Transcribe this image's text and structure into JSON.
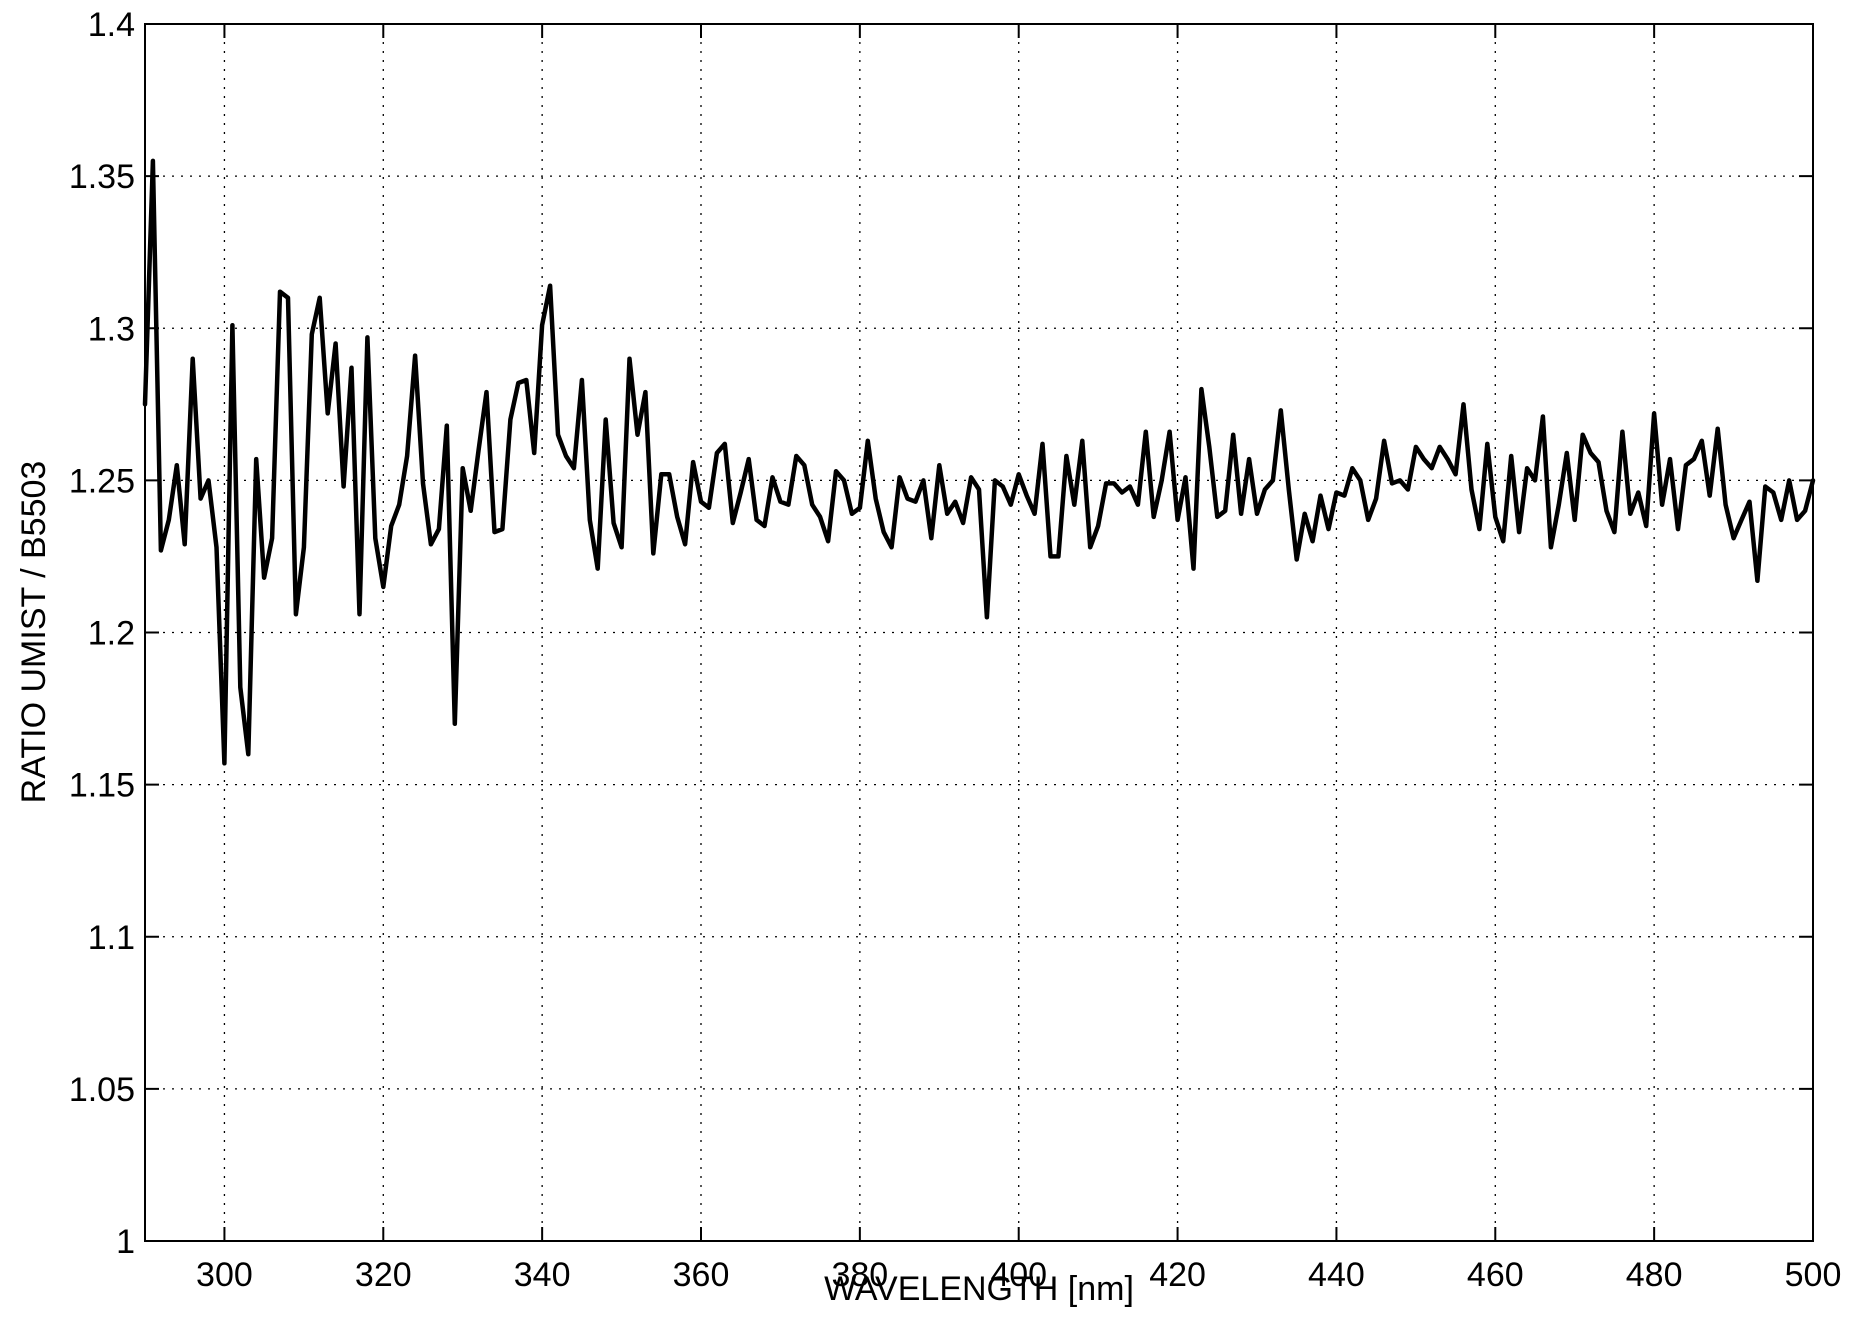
{
  "chart_data": {
    "type": "line",
    "xlabel": "WAVELENGTH [nm]",
    "ylabel": "RATIO UMIST / B5503",
    "xlim": [
      290,
      500
    ],
    "ylim": [
      1.0,
      1.4
    ],
    "xticks": [
      300,
      320,
      340,
      360,
      380,
      400,
      420,
      440,
      460,
      480,
      500
    ],
    "xtick_labels": [
      "300",
      "320",
      "340",
      "360",
      "380",
      "400",
      "420",
      "440",
      "460",
      "480",
      "500"
    ],
    "yticks": [
      1.0,
      1.05,
      1.1,
      1.15,
      1.2,
      1.25,
      1.3,
      1.35,
      1.4
    ],
    "ytick_labels": [
      "1",
      "1.05",
      "1.1",
      "1.15",
      "1.2",
      "1.25",
      "1.3",
      "1.35",
      "1.4"
    ],
    "grid": true,
    "series": [
      {
        "color": "#000000",
        "x": [
          290,
          291,
          292,
          293,
          294,
          295,
          296,
          297,
          298,
          299,
          300,
          301,
          302,
          303,
          304,
          305,
          306,
          307,
          308,
          309,
          310,
          311,
          312,
          313,
          314,
          315,
          316,
          317,
          318,
          319,
          320,
          321,
          322,
          323,
          324,
          325,
          326,
          327,
          328,
          329,
          330,
          331,
          332,
          333,
          334,
          335,
          336,
          337,
          338,
          339,
          340,
          341,
          342,
          343,
          344,
          345,
          346,
          347,
          348,
          349,
          350,
          351,
          352,
          353,
          354,
          355,
          356,
          357,
          358,
          359,
          360,
          361,
          362,
          363,
          364,
          365,
          366,
          367,
          368,
          369,
          370,
          371,
          372,
          373,
          374,
          375,
          376,
          377,
          378,
          379,
          380,
          381,
          382,
          383,
          384,
          385,
          386,
          387,
          388,
          389,
          390,
          391,
          392,
          393,
          394,
          395,
          396,
          397,
          398,
          399,
          400,
          401,
          402,
          403,
          404,
          405,
          406,
          407,
          408,
          409,
          410,
          411,
          412,
          413,
          414,
          415,
          416,
          417,
          418,
          419,
          420,
          421,
          422,
          423,
          424,
          425,
          426,
          427,
          428,
          429,
          430,
          431,
          432,
          433,
          434,
          435,
          436,
          437,
          438,
          439,
          440,
          441,
          442,
          443,
          444,
          445,
          446,
          447,
          448,
          449,
          450,
          451,
          452,
          453,
          454,
          455,
          456,
          457,
          458,
          459,
          460,
          461,
          462,
          463,
          464,
          465,
          466,
          467,
          468,
          469,
          470,
          471,
          472,
          473,
          474,
          475,
          476,
          477,
          478,
          479,
          480,
          481,
          482,
          483,
          484,
          485,
          486,
          487,
          488,
          489,
          490,
          491,
          492,
          493,
          494,
          495,
          496,
          497,
          498,
          499,
          500
        ],
        "y": [
          1.275,
          1.355,
          1.227,
          1.237,
          1.255,
          1.229,
          1.29,
          1.244,
          1.25,
          1.228,
          1.157,
          1.301,
          1.182,
          1.16,
          1.257,
          1.218,
          1.231,
          1.312,
          1.31,
          1.206,
          1.228,
          1.298,
          1.31,
          1.272,
          1.295,
          1.248,
          1.287,
          1.206,
          1.297,
          1.231,
          1.215,
          1.235,
          1.242,
          1.258,
          1.291,
          1.249,
          1.229,
          1.234,
          1.268,
          1.17,
          1.254,
          1.24,
          1.26,
          1.279,
          1.233,
          1.234,
          1.27,
          1.282,
          1.283,
          1.259,
          1.301,
          1.314,
          1.265,
          1.258,
          1.254,
          1.283,
          1.237,
          1.221,
          1.27,
          1.236,
          1.228,
          1.29,
          1.265,
          1.279,
          1.226,
          1.252,
          1.252,
          1.238,
          1.229,
          1.256,
          1.243,
          1.241,
          1.259,
          1.262,
          1.236,
          1.246,
          1.257,
          1.237,
          1.235,
          1.251,
          1.243,
          1.242,
          1.258,
          1.255,
          1.242,
          1.238,
          1.23,
          1.253,
          1.25,
          1.239,
          1.241,
          1.263,
          1.244,
          1.233,
          1.228,
          1.251,
          1.244,
          1.243,
          1.25,
          1.231,
          1.255,
          1.239,
          1.243,
          1.236,
          1.251,
          1.247,
          1.205,
          1.25,
          1.248,
          1.242,
          1.252,
          1.245,
          1.239,
          1.262,
          1.225,
          1.225,
          1.258,
          1.242,
          1.263,
          1.228,
          1.235,
          1.249,
          1.249,
          1.246,
          1.248,
          1.242,
          1.266,
          1.238,
          1.25,
          1.266,
          1.237,
          1.251,
          1.221,
          1.28,
          1.261,
          1.238,
          1.24,
          1.265,
          1.239,
          1.257,
          1.239,
          1.247,
          1.25,
          1.273,
          1.247,
          1.224,
          1.239,
          1.23,
          1.245,
          1.234,
          1.246,
          1.245,
          1.254,
          1.25,
          1.237,
          1.244,
          1.263,
          1.249,
          1.25,
          1.247,
          1.261,
          1.257,
          1.254,
          1.261,
          1.257,
          1.252,
          1.275,
          1.247,
          1.234,
          1.262,
          1.238,
          1.23,
          1.258,
          1.233,
          1.254,
          1.25,
          1.271,
          1.228,
          1.242,
          1.259,
          1.237,
          1.265,
          1.259,
          1.256,
          1.24,
          1.233,
          1.266,
          1.239,
          1.246,
          1.235,
          1.272,
          1.242,
          1.257,
          1.234,
          1.255,
          1.257,
          1.263,
          1.245,
          1.267,
          1.242,
          1.231,
          1.237,
          1.243,
          1.217,
          1.248,
          1.246,
          1.237,
          1.25,
          1.237,
          1.24,
          1.25
        ]
      }
    ]
  }
}
